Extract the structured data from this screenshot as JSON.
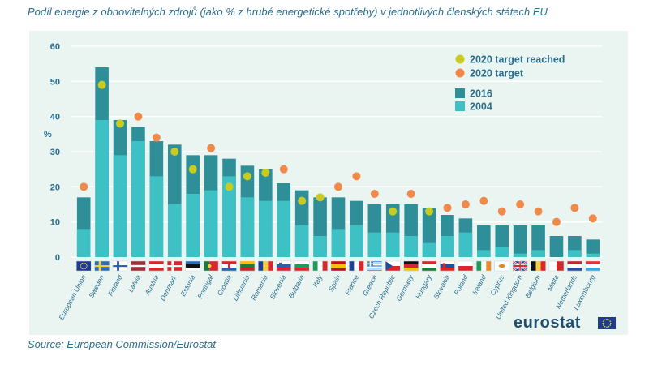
{
  "title": "Podíl energie z obnovitelných zdrojů (jako % z hrubé energetické spotřeby) v jednotlivých členských státech EU",
  "source": "Source:  European Commission/Eurostat",
  "brand": "eurostat",
  "colors": {
    "bar_2016": "#2f8f99",
    "bar_2004": "#3dc1c4",
    "target_reached": "#c9cc1e",
    "target": "#f08a4b",
    "grid": "#ffffff",
    "axis_text": "#2a6d8c"
  },
  "chart_data": {
    "type": "bar",
    "ylabel": "%",
    "ylim": [
      0,
      60
    ],
    "yticks": [
      "0",
      "10",
      "20",
      "30",
      "40",
      "50",
      "60"
    ],
    "categories": [
      "European Union",
      "Sweden",
      "Finland",
      "Latvia",
      "Austria",
      "Denmark",
      "Estonia",
      "Portugal",
      "Croatia",
      "Lithuania",
      "Romania",
      "Slovenia",
      "Bulgaria",
      "Italy",
      "Spain",
      "France",
      "Greece",
      "Czech Republic",
      "Germany",
      "Hungary",
      "Slovakia",
      "Poland",
      "Ireland",
      "Cyprus",
      "United Kingdom",
      "Belgium",
      "Malta",
      "Netherlands",
      "Luxembourg"
    ],
    "series": [
      {
        "name": "2016",
        "values": [
          17,
          54,
          39,
          37,
          33,
          32,
          29,
          29,
          28,
          26,
          25,
          21,
          19,
          17,
          17,
          16,
          15,
          15,
          15,
          14,
          12,
          11,
          9,
          9,
          9,
          9,
          6,
          6,
          5
        ]
      },
      {
        "name": "2004",
        "values": [
          8,
          39,
          29,
          33,
          23,
          15,
          18,
          19,
          23,
          17,
          16,
          16,
          9,
          6,
          8,
          9,
          7,
          7,
          6,
          4,
          6,
          7,
          2,
          3,
          1,
          2,
          0,
          2,
          1
        ]
      },
      {
        "name": "2020 target reached",
        "values": [
          null,
          49,
          38,
          null,
          null,
          30,
          25,
          null,
          20,
          23,
          24,
          null,
          16,
          17,
          null,
          null,
          null,
          13,
          null,
          13,
          null,
          null,
          null,
          null,
          null,
          null,
          null,
          null,
          null
        ]
      },
      {
        "name": "2020 target",
        "values": [
          20,
          null,
          null,
          40,
          34,
          null,
          null,
          31,
          null,
          null,
          null,
          25,
          null,
          null,
          20,
          23,
          18,
          null,
          18,
          null,
          14,
          15,
          16,
          13,
          15,
          13,
          10,
          14,
          11
        ]
      }
    ],
    "legend": {
      "placement": "top-right",
      "items": [
        {
          "label": "2020 target reached",
          "marker": "circle",
          "color": "#c9cc1e"
        },
        {
          "label": "2020 target",
          "marker": "circle",
          "color": "#f08a4b"
        },
        {
          "label": "2016",
          "marker": "square",
          "color": "#2f8f99"
        },
        {
          "label": "2004",
          "marker": "square",
          "color": "#3dc1c4"
        }
      ]
    },
    "grid": true,
    "flags": [
      "eu",
      "se",
      "fi",
      "lv",
      "at",
      "dk",
      "ee",
      "pt",
      "hr",
      "lt",
      "ro",
      "si",
      "bg",
      "it",
      "es",
      "fr",
      "gr",
      "cz",
      "de",
      "hu",
      "sk",
      "pl",
      "ie",
      "cy",
      "gb",
      "be",
      "mt",
      "nl",
      "lu"
    ]
  }
}
